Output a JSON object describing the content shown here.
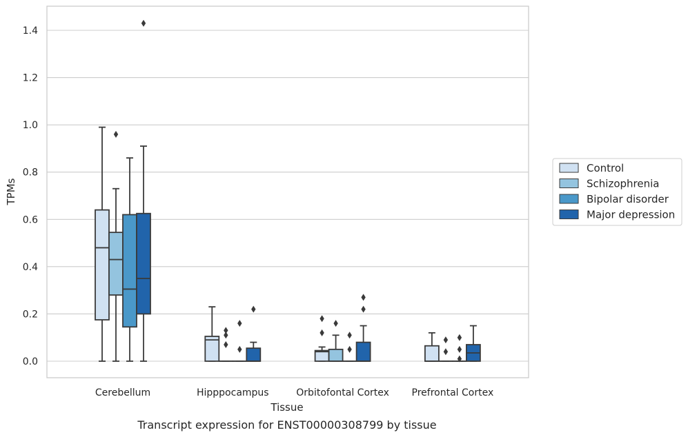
{
  "caption": "Transcript expression for ENST00000308799 by tissue",
  "chart_data": {
    "type": "box",
    "title": "",
    "xlabel": "Tissue",
    "ylabel": "TPMs",
    "ylim": [
      -0.07,
      1.5
    ],
    "yticks": [
      0.0,
      0.2,
      0.4,
      0.6,
      0.8,
      1.0,
      1.2,
      1.4
    ],
    "ytick_labels": [
      "0.0",
      "0.2",
      "0.4",
      "0.6",
      "0.8",
      "1.0",
      "1.2",
      "1.4"
    ],
    "categories": [
      "Cerebellum",
      "Hipppocampus",
      "Orbitofontal Cortex",
      "Prefrontal Cortex"
    ],
    "grid": "horizontal",
    "legend_position": "right",
    "series": [
      {
        "name": "Control",
        "color": "#d0e1f2",
        "boxes": [
          {
            "whislo": 0.0,
            "q1": 0.175,
            "med": 0.48,
            "q3": 0.64,
            "whishi": 0.99,
            "fliers": []
          },
          {
            "whislo": 0.0,
            "q1": 0.0,
            "med": 0.09,
            "q3": 0.105,
            "whishi": 0.23,
            "fliers": []
          },
          {
            "whislo": 0.0,
            "q1": 0.0,
            "med": 0.04,
            "q3": 0.045,
            "whishi": 0.06,
            "fliers": [
              0.12,
              0.18
            ]
          },
          {
            "whislo": 0.0,
            "q1": 0.0,
            "med": 0.0,
            "q3": 0.065,
            "whishi": 0.12,
            "fliers": []
          }
        ]
      },
      {
        "name": "Schizophrenia",
        "color": "#94c4df",
        "boxes": [
          {
            "whislo": 0.0,
            "q1": 0.28,
            "med": 0.43,
            "q3": 0.545,
            "whishi": 0.73,
            "fliers": [
              0.96
            ]
          },
          {
            "whislo": 0.0,
            "q1": 0.0,
            "med": 0.0,
            "q3": 0.0,
            "whishi": 0.0,
            "fliers": [
              0.07,
              0.11,
              0.13
            ]
          },
          {
            "whislo": 0.0,
            "q1": 0.0,
            "med": 0.0,
            "q3": 0.05,
            "whishi": 0.11,
            "fliers": [
              0.16
            ]
          },
          {
            "whislo": 0.0,
            "q1": 0.0,
            "med": 0.0,
            "q3": 0.0,
            "whishi": 0.0,
            "fliers": [
              0.04,
              0.09
            ]
          }
        ]
      },
      {
        "name": "Bipolar disorder",
        "color": "#4a98c9",
        "boxes": [
          {
            "whislo": 0.0,
            "q1": 0.145,
            "med": 0.305,
            "q3": 0.62,
            "whishi": 0.86,
            "fliers": []
          },
          {
            "whislo": 0.0,
            "q1": 0.0,
            "med": 0.0,
            "q3": 0.0,
            "whishi": 0.0,
            "fliers": [
              0.05,
              0.16
            ]
          },
          {
            "whislo": 0.0,
            "q1": 0.0,
            "med": 0.0,
            "q3": 0.0,
            "whishi": 0.0,
            "fliers": [
              0.05,
              0.11
            ]
          },
          {
            "whislo": 0.0,
            "q1": 0.0,
            "med": 0.0,
            "q3": 0.0,
            "whishi": 0.0,
            "fliers": [
              0.01,
              0.05,
              0.1
            ]
          }
        ]
      },
      {
        "name": "Major depression",
        "color": "#2164ab",
        "boxes": [
          {
            "whislo": 0.0,
            "q1": 0.2,
            "med": 0.35,
            "q3": 0.625,
            "whishi": 0.91,
            "fliers": [
              1.43
            ]
          },
          {
            "whislo": 0.0,
            "q1": 0.0,
            "med": 0.0,
            "q3": 0.055,
            "whishi": 0.08,
            "fliers": [
              0.22
            ]
          },
          {
            "whislo": 0.0,
            "q1": 0.0,
            "med": 0.0,
            "q3": 0.08,
            "whishi": 0.15,
            "fliers": [
              0.22,
              0.27
            ]
          },
          {
            "whislo": 0.0,
            "q1": 0.0,
            "med": 0.035,
            "q3": 0.07,
            "whishi": 0.15,
            "fliers": []
          }
        ]
      }
    ]
  }
}
